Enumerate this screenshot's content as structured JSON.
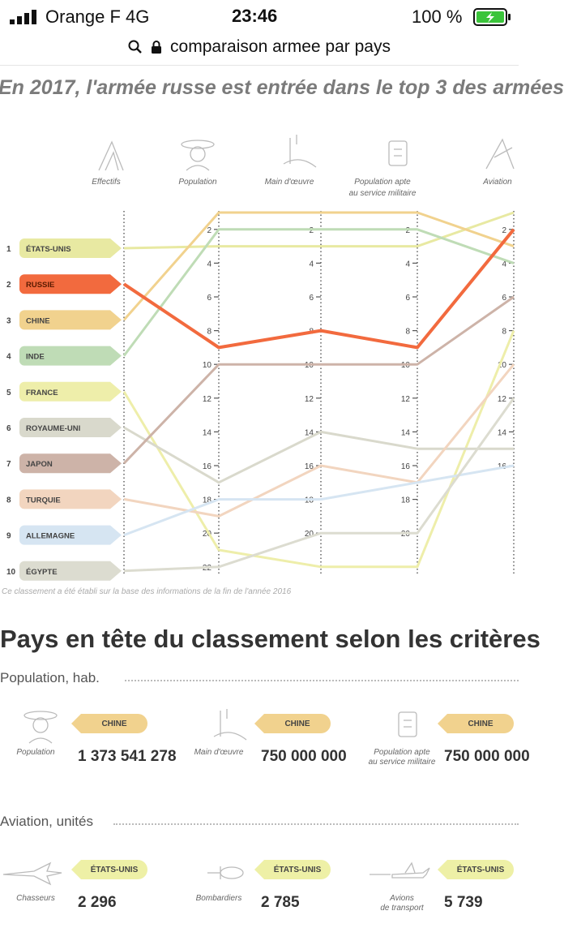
{
  "status_bar": {
    "carrier": "Orange F  4G",
    "time": "23:46",
    "battery": "100 %"
  },
  "browser": {
    "url": "comparaison armee par pays"
  },
  "headline": "En 2017, l'armée russe est entrée dans le top 3 des armées",
  "chart_data": {
    "type": "line",
    "x": [
      "Effectifs",
      "Population",
      "Main d'œuvre",
      "Population apte au service militaire",
      "Aviation"
    ],
    "series": [
      {
        "name": "ÉTATS-UNIS",
        "color": "#e8e9a2",
        "values": [
          1,
          3,
          3,
          3,
          1
        ]
      },
      {
        "name": "RUSSIE",
        "color": "#f26a3e",
        "values": [
          2,
          9,
          8,
          9,
          2
        ]
      },
      {
        "name": "CHINE",
        "color": "#f1d28e",
        "values": [
          3,
          1,
          1,
          1,
          3
        ]
      },
      {
        "name": "INDE",
        "color": "#bfdcb6",
        "values": [
          4,
          2,
          2,
          2,
          4
        ]
      },
      {
        "name": "FRANCE",
        "color": "#eeeeaa",
        "values": [
          5,
          21,
          22,
          22,
          8
        ]
      },
      {
        "name": "ROYAUME-UNI",
        "color": "#d9d9cc",
        "values": [
          6,
          17,
          14,
          15,
          15
        ]
      },
      {
        "name": "JAPON",
        "color": "#cdb3a8",
        "values": [
          7,
          10,
          10,
          10,
          6
        ]
      },
      {
        "name": "TURQUIE",
        "color": "#f2d5bf",
        "values": [
          8,
          19,
          16,
          17,
          10
        ]
      },
      {
        "name": "ALLEMAGNE",
        "color": "#d6e5f2",
        "values": [
          9,
          18,
          18,
          17,
          16
        ]
      },
      {
        "name": "ÉGYPTE",
        "color": "#dcdcd0",
        "values": [
          10,
          22,
          20,
          20,
          12
        ]
      }
    ],
    "rank_labels": [
      "1",
      "2",
      "3",
      "4",
      "5",
      "6",
      "7",
      "8",
      "9",
      "10"
    ],
    "axis_ticks": [
      [
        "2",
        "4",
        "6",
        "8",
        "10",
        "12",
        "14",
        "16",
        "18",
        "20",
        "22"
      ],
      [
        "2",
        "4",
        "6",
        "8",
        "10",
        "12",
        "14",
        "16",
        "18",
        "20"
      ],
      [
        "2",
        "4",
        "6",
        "8",
        "10",
        "12",
        "14",
        "16",
        "18",
        "20"
      ],
      [
        "2",
        "4",
        "6",
        "8",
        "10",
        "12",
        "14",
        "16"
      ]
    ],
    "axis_labels": [
      "Effectifs",
      "Population",
      "Main d'œuvre",
      "Population apte",
      "au service militaire",
      "Aviation"
    ]
  },
  "note": "Ce classement a été établi sur la base des informations de la fin de l'année 2016",
  "section_title": "Pays en tête du classement selon les critères",
  "population": {
    "heading": "Population, hab.",
    "items": [
      {
        "label": "Population",
        "label2": "",
        "country": "CHINE",
        "value": "1 373 541 278"
      },
      {
        "label": "Main d'œuvre",
        "label2": "",
        "country": "CHINE",
        "value": "750 000 000"
      },
      {
        "label": "Population apte",
        "label2": "au service militaire",
        "country": "CHINE",
        "value": "750 000 000"
      }
    ]
  },
  "aviation": {
    "heading": "Aviation, unités",
    "items": [
      {
        "label": "Chasseurs",
        "label2": "",
        "country": "ÉTATS-UNIS",
        "value": "2 296"
      },
      {
        "label": "Bombardiers",
        "label2": "",
        "country": "ÉTATS-UNIS",
        "value": "2 785"
      },
      {
        "label": "Avions",
        "label2": "de transport",
        "country": "ÉTATS-UNIS",
        "value": "5 739"
      }
    ]
  }
}
